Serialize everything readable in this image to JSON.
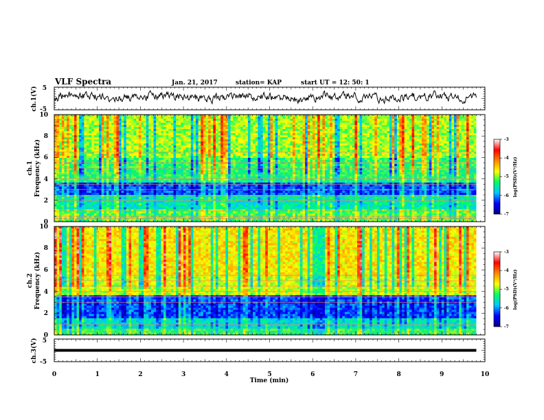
{
  "header": {
    "title": "VLF Spectra",
    "date": "Jan. 21, 2017",
    "station": "station= KAP",
    "start": "start  UT =   12: 50: 1"
  },
  "chart_data": [
    {
      "type": "line",
      "panel": "ch1-waveform",
      "ylabel": "ch.1(V)",
      "ylim": [
        -5,
        5
      ],
      "yticks": [
        "5",
        "-5"
      ],
      "xlim": [
        0,
        10
      ],
      "line_color": "#000000"
    },
    {
      "type": "heatmap",
      "panel": "ch1-spectrogram",
      "ylabel_line1": "ch.1",
      "ylabel_line2": "Frequency  (kHz)",
      "ylim": [
        0,
        10
      ],
      "yticks": [
        "0",
        "2",
        "4",
        "6",
        "8",
        "10"
      ],
      "xlim": [
        0,
        10
      ],
      "data_end_min": 9.8,
      "colorbar": {
        "label": "log(PSD)(V²/Hz)",
        "range": [
          -7,
          -3
        ],
        "ticks": [
          "-3",
          "-4",
          "-5",
          "-6",
          "-7"
        ],
        "colors": [
          "#000080",
          "#0000ff",
          "#00c8ff",
          "#00ff66",
          "#ffff00",
          "#ff8800",
          "#ff0000",
          "#ffffff"
        ]
      },
      "bands_khz": [
        0.3,
        0.5,
        1.0,
        2.0,
        2.3,
        3.0,
        3.5,
        4.0,
        4.5,
        5.0,
        5.5,
        6.5
      ]
    },
    {
      "type": "heatmap",
      "panel": "ch2-spectrogram",
      "ylabel_line1": "ch.2",
      "ylabel_line2": "Frequency  (kHz)",
      "ylim": [
        0,
        10
      ],
      "yticks": [
        "0",
        "2",
        "4",
        "6",
        "8",
        "10"
      ],
      "xlim": [
        0,
        10
      ],
      "data_end_min": 9.8,
      "colorbar": {
        "label": "log(PSD)(V²/Hz)",
        "range": [
          -7,
          -3
        ],
        "ticks": [
          "-3",
          "-4",
          "-5",
          "-6",
          "-7"
        ],
        "colors": [
          "#000080",
          "#0000ff",
          "#00c8ff",
          "#00ff66",
          "#ffff00",
          "#ff8800",
          "#ff0000",
          "#ffffff"
        ]
      },
      "bands_khz": [
        0.3,
        0.5,
        1.0,
        3.0,
        3.5,
        4.0,
        4.5,
        5.0,
        5.5
      ]
    },
    {
      "type": "line",
      "panel": "ch3-waveform",
      "ylabel": "ch.3(V)",
      "ylim": [
        -5,
        5
      ],
      "yticks": [
        "5",
        "-5"
      ],
      "xlim": [
        0,
        10
      ],
      "constant_value": 0,
      "data_end_min": 9.8
    }
  ],
  "xaxis": {
    "label": "Time  (min)",
    "ticks": [
      "0",
      "1",
      "2",
      "3",
      "4",
      "5",
      "6",
      "7",
      "8",
      "9",
      "10"
    ]
  }
}
